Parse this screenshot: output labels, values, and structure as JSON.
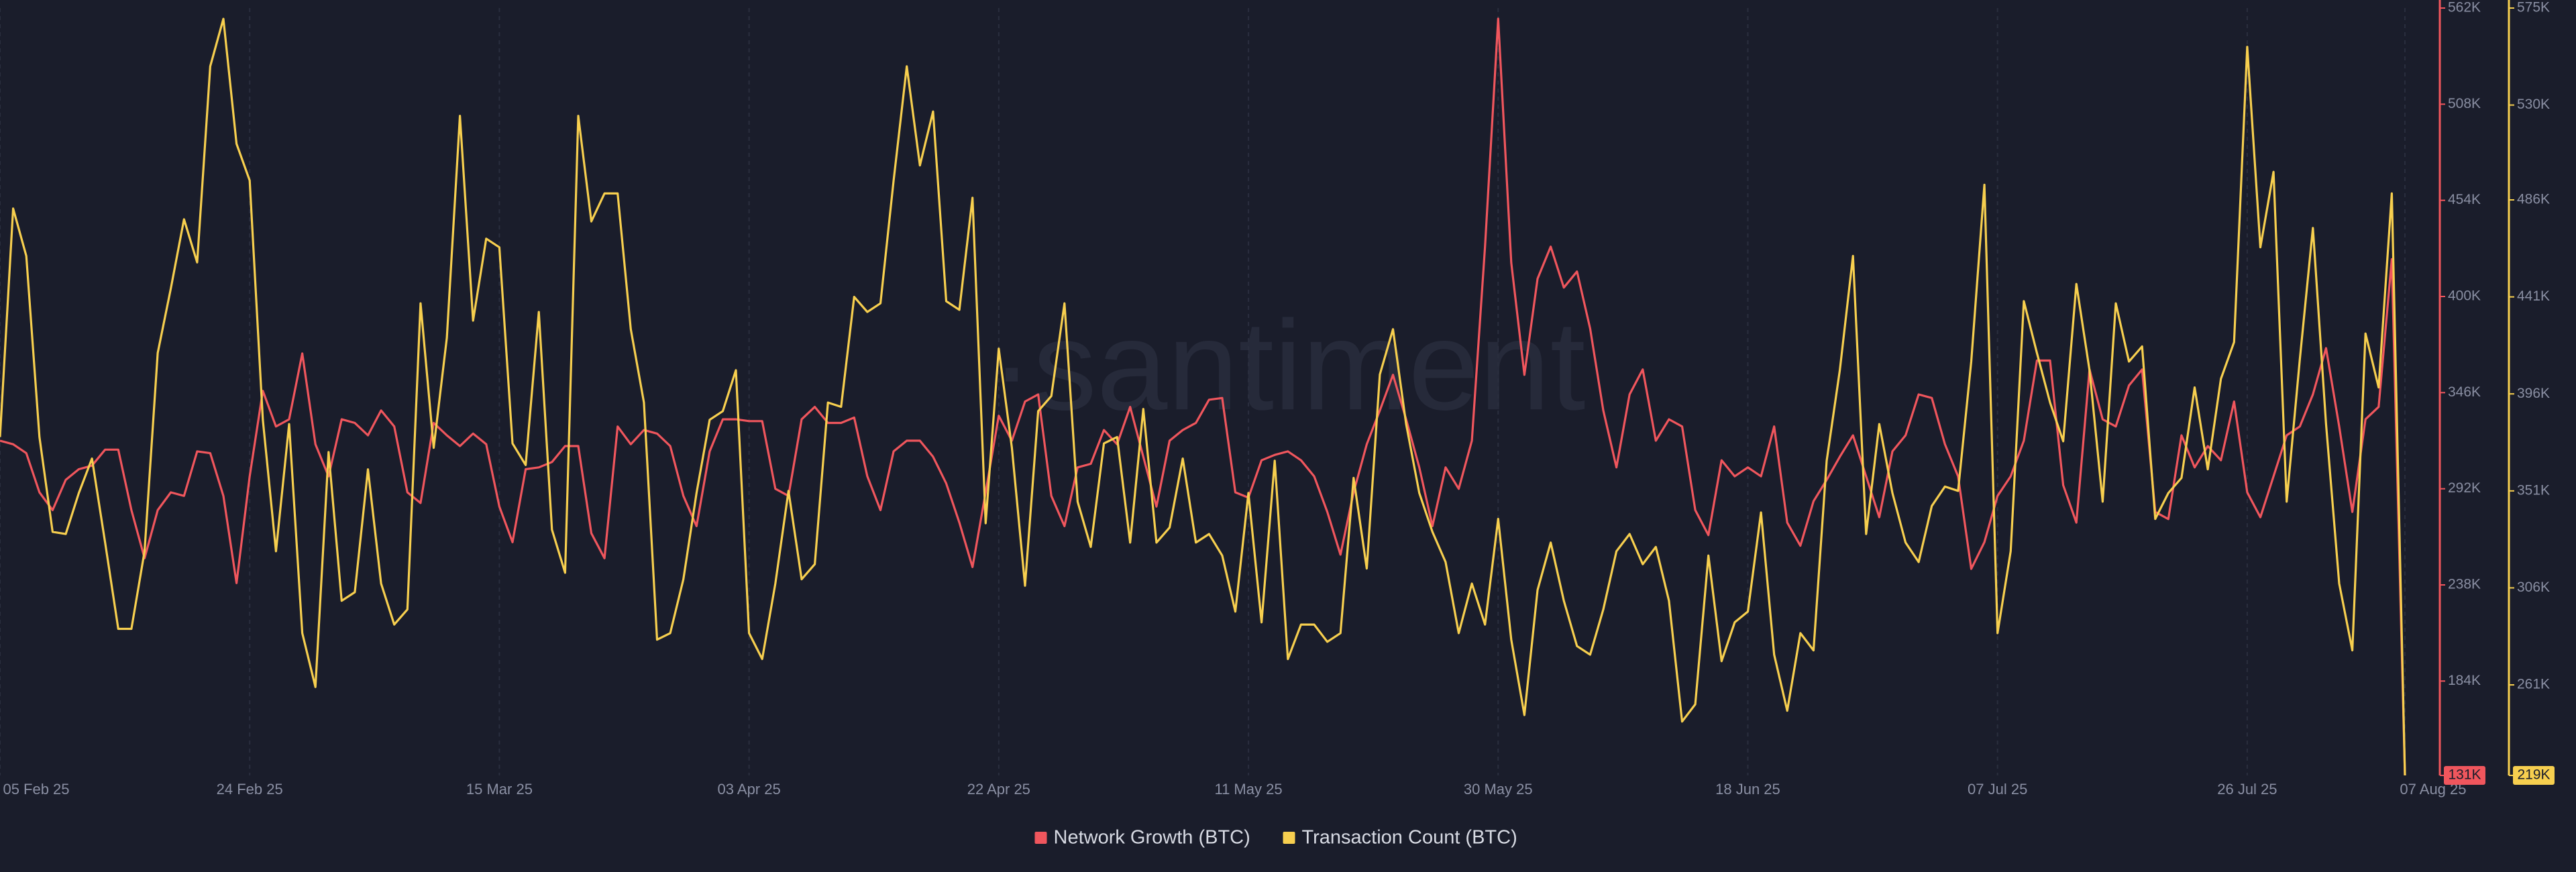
{
  "chart_data": {
    "type": "line",
    "watermark": "·santiment",
    "categories": [
      "05 Feb 25",
      null,
      null,
      null,
      null,
      null,
      null,
      null,
      null,
      null,
      null,
      null,
      null,
      null,
      null,
      null,
      null,
      null,
      null,
      "24 Feb 25",
      null,
      null,
      null,
      null,
      null,
      null,
      null,
      null,
      null,
      null,
      null,
      null,
      null,
      null,
      null,
      null,
      null,
      null,
      "15 Mar 25",
      null,
      null,
      null,
      null,
      null,
      null,
      null,
      null,
      null,
      null,
      null,
      null,
      null,
      null,
      null,
      null,
      null,
      null,
      "03 Apr 25",
      null,
      null,
      null,
      null,
      null,
      null,
      null,
      null,
      null,
      null,
      null,
      null,
      null,
      null,
      null,
      null,
      null,
      null,
      "22 Apr 25",
      null,
      null,
      null,
      null,
      null,
      null,
      null,
      null,
      null,
      null,
      null,
      null,
      null,
      null,
      null,
      null,
      null,
      null,
      "11 May 25",
      null,
      null,
      null,
      null,
      null,
      null,
      null,
      null,
      null,
      null,
      null,
      null,
      null,
      null,
      null,
      null,
      null,
      null,
      "30 May 25",
      null,
      null,
      null,
      null,
      null,
      null,
      null,
      null,
      null,
      null,
      null,
      null,
      null,
      null,
      null,
      null,
      null,
      null,
      "18 Jun 25",
      null,
      null,
      null,
      null,
      null,
      null,
      null,
      null,
      null,
      null,
      null,
      null,
      null,
      null,
      null,
      null,
      null,
      null,
      "07 Jul 25",
      null,
      null,
      null,
      null,
      null,
      null,
      null,
      null,
      null,
      null,
      null,
      null,
      null,
      null,
      null,
      null,
      null,
      null,
      "26 Jul 25",
      null,
      null,
      null,
      null,
      null,
      null,
      null,
      null,
      null,
      null,
      null,
      "07 Aug 25"
    ],
    "series": [
      {
        "name": "Network Growth (BTC)",
        "color": "#f0565d",
        "axis": "y",
        "values": [
          319000,
          317000,
          312000,
          290000,
          280000,
          297000,
          303000,
          305000,
          314000,
          314000,
          280000,
          253000,
          280000,
          290000,
          288000,
          313000,
          312000,
          288000,
          239000,
          299000,
          347000,
          327000,
          331000,
          368000,
          317000,
          299000,
          331000,
          329000,
          322000,
          336000,
          327000,
          290000,
          284000,
          329000,
          322000,
          316000,
          323000,
          317000,
          282000,
          262000,
          303000,
          304000,
          307000,
          316000,
          316000,
          267000,
          253000,
          327000,
          317000,
          325000,
          323000,
          316000,
          288000,
          271000,
          313000,
          331000,
          331000,
          330000,
          330000,
          292000,
          288000,
          331000,
          338000,
          329000,
          329000,
          332000,
          299000,
          280000,
          313000,
          319000,
          319000,
          310000,
          295000,
          273000,
          248000,
          290000,
          333000,
          319000,
          341000,
          345000,
          288000,
          271000,
          304000,
          306000,
          325000,
          317000,
          338000,
          310000,
          282000,
          319000,
          325000,
          329000,
          342000,
          343000,
          290000,
          287000,
          308000,
          311000,
          313000,
          308000,
          299000,
          279000,
          255000,
          290000,
          317000,
          336000,
          356000,
          331000,
          304000,
          271000,
          304000,
          292000,
          319000,
          428000,
          556000,
          419000,
          356000,
          410000,
          428000,
          405000,
          414000,
          382000,
          336000,
          304000,
          345000,
          359000,
          319000,
          331000,
          327000,
          280000,
          266000,
          308000,
          299000,
          304000,
          299000,
          327000,
          273000,
          260000,
          285000,
          297000,
          310000,
          322000,
          299000,
          276000,
          313000,
          322000,
          345000,
          343000,
          317000,
          299000,
          247000,
          262000,
          288000,
          299000,
          319000,
          364000,
          364000,
          294000,
          273000,
          359000,
          331000,
          327000,
          350000,
          359000,
          279000,
          275000,
          322000,
          304000,
          316000,
          308000,
          341000,
          290000,
          276000,
          299000,
          322000,
          327000,
          345000,
          371000,
          327000,
          279000,
          331000,
          338000,
          421000,
          131000
        ]
      },
      {
        "name": "Transaction Count (BTC)",
        "color": "#f7cf4f",
        "axis": "y2",
        "values": [
          376000,
          482000,
          460000,
          376000,
          332000,
          331000,
          350000,
          366000,
          327000,
          287000,
          287000,
          323000,
          415000,
          445000,
          477000,
          457000,
          548000,
          570000,
          512000,
          495000,
          384000,
          323000,
          382000,
          285000,
          260000,
          369000,
          300000,
          304000,
          361000,
          308000,
          289000,
          296000,
          438000,
          371000,
          422000,
          525000,
          430000,
          468000,
          464000,
          373000,
          363000,
          434000,
          333000,
          313000,
          525000,
          476000,
          489000,
          489000,
          426000,
          392000,
          282000,
          285000,
          310000,
          350000,
          384000,
          388000,
          407000,
          285000,
          273000,
          308000,
          351000,
          310000,
          317000,
          392000,
          390000,
          441000,
          434000,
          438000,
          495000,
          548000,
          502000,
          527000,
          439000,
          435000,
          487000,
          336000,
          417000,
          371000,
          307000,
          388000,
          395000,
          438000,
          346000,
          325000,
          373000,
          376000,
          327000,
          389000,
          327000,
          334000,
          366000,
          327000,
          331000,
          321000,
          295000,
          350000,
          290000,
          365000,
          273000,
          289000,
          289000,
          281000,
          285000,
          357000,
          315000,
          405000,
          426000,
          382000,
          350000,
          332000,
          318000,
          285000,
          308000,
          289000,
          338000,
          282000,
          247000,
          305000,
          327000,
          300000,
          279000,
          275000,
          296000,
          323000,
          331000,
          317000,
          325000,
          300000,
          244000,
          252000,
          321000,
          272000,
          290000,
          295000,
          341000,
          275000,
          249000,
          285000,
          277000,
          365000,
          407000,
          460000,
          331000,
          382000,
          350000,
          327000,
          318000,
          344000,
          353000,
          351000,
          411000,
          493000,
          285000,
          323000,
          439000,
          415000,
          392000,
          374000,
          447000,
          407000,
          346000,
          438000,
          411000,
          418000,
          338000,
          350000,
          357000,
          399000,
          361000,
          403000,
          420000,
          557000,
          464000,
          499000,
          346000,
          412000,
          473000,
          382000,
          308000,
          277000,
          424000,
          399000,
          489000,
          219000
        ]
      }
    ],
    "ylim": [
      131000,
      562000
    ],
    "yticks": [
      {
        "value": 131000,
        "label": "131K"
      },
      {
        "value": 184000,
        "label": "184K"
      },
      {
        "value": 238000,
        "label": "238K"
      },
      {
        "value": 292000,
        "label": "292K"
      },
      {
        "value": 346000,
        "label": "346K"
      },
      {
        "value": 400000,
        "label": "400K"
      },
      {
        "value": 454000,
        "label": "454K"
      },
      {
        "value": 508000,
        "label": "508K"
      },
      {
        "value": 562000,
        "label": "562K"
      }
    ],
    "y2lim": [
      219000,
      575000
    ],
    "y2ticks": [
      {
        "value": 219000,
        "label": "219K"
      },
      {
        "value": 261000,
        "label": "261K"
      },
      {
        "value": 306000,
        "label": "306K"
      },
      {
        "value": 351000,
        "label": "351K"
      },
      {
        "value": 396000,
        "label": "396K"
      },
      {
        "value": 441000,
        "label": "441K"
      },
      {
        "value": 486000,
        "label": "486K"
      },
      {
        "value": 530000,
        "label": "530K"
      },
      {
        "value": 575000,
        "label": "575K"
      }
    ],
    "grid": true,
    "legend": "bottom"
  }
}
